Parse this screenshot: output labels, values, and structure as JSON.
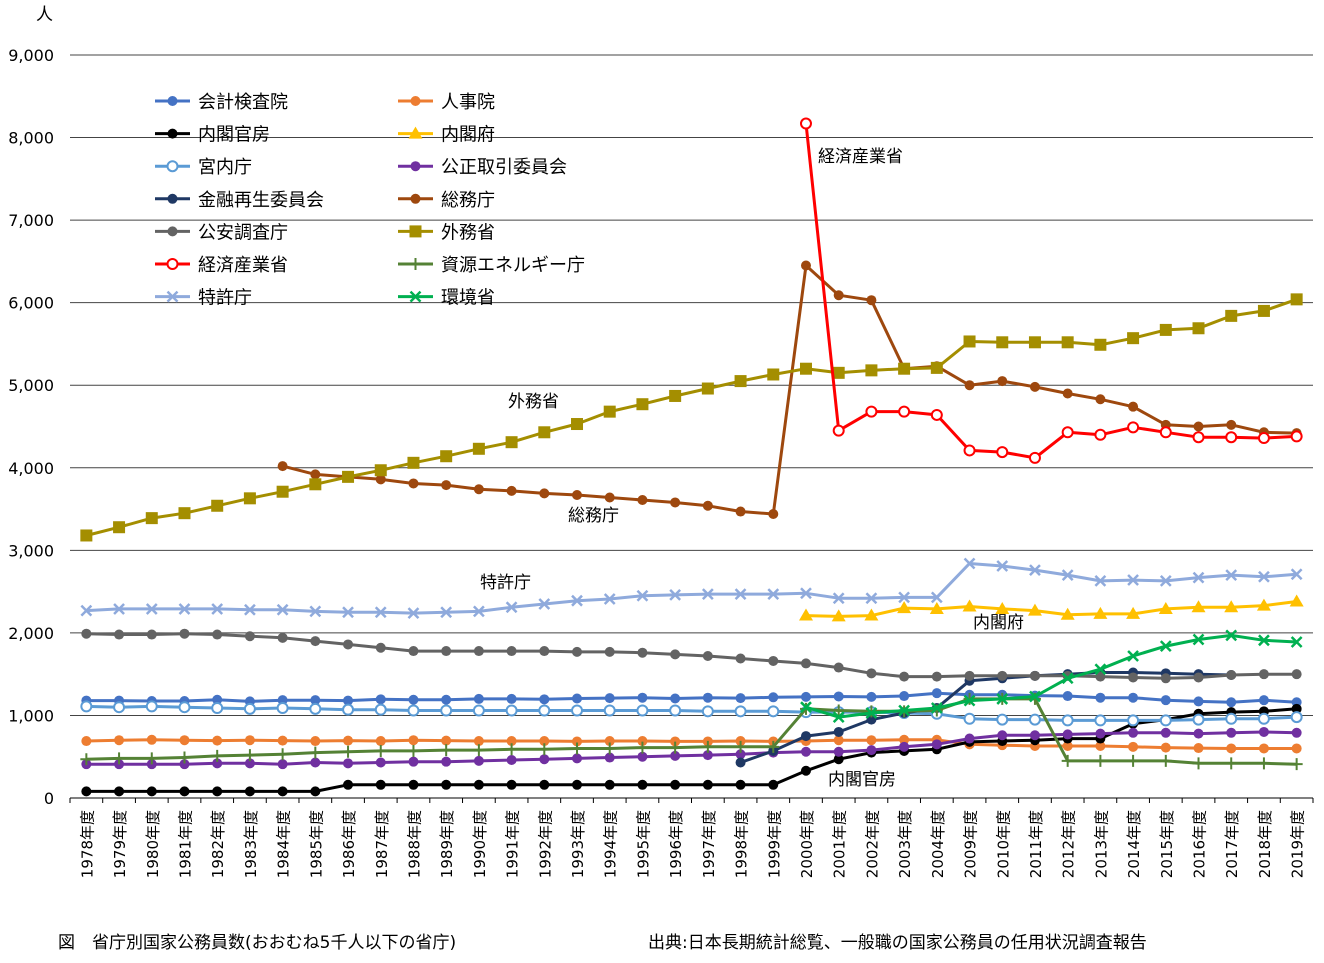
{
  "chart_data": {
    "type": "line",
    "y_unit": "人",
    "ylim": [
      0,
      9000
    ],
    "y_ticks": [
      "0",
      "1,000",
      "2,000",
      "3,000",
      "4,000",
      "5,000",
      "6,000",
      "7,000",
      "8,000",
      "9,000"
    ],
    "categories": [
      "1978年度",
      "1979年度",
      "1980年度",
      "1981年度",
      "1982年度",
      "1983年度",
      "1984年度",
      "1985年度",
      "1986年度",
      "1987年度",
      "1988年度",
      "1989年度",
      "1990年度",
      "1991年度",
      "1992年度",
      "1993年度",
      "1994年度",
      "1995年度",
      "1996年度",
      "1997年度",
      "1998年度",
      "1999年度",
      "2000年度",
      "2001年度",
      "2002年度",
      "2003年度",
      "2004年度",
      "2009年度",
      "2010年度",
      "2011年度",
      "2012年度",
      "2013年度",
      "2014年度",
      "2015年度",
      "2016年度",
      "2017年度",
      "2018年度",
      "2019年度"
    ],
    "grid": true,
    "legend_position": "top-left",
    "series": [
      {
        "name": "会計検査院",
        "color": "#4472c4",
        "marker": "circle",
        "values": [
          1180,
          1180,
          1175,
          1175,
          1190,
          1170,
          1185,
          1185,
          1180,
          1195,
          1190,
          1190,
          1200,
          1200,
          1195,
          1205,
          1210,
          1215,
          1205,
          1215,
          1210,
          1220,
          1225,
          1230,
          1225,
          1235,
          1270,
          1250,
          1250,
          1240,
          1235,
          1215,
          1215,
          1185,
          1170,
          1160,
          1185,
          1160
        ]
      },
      {
        "name": "人事院",
        "color": "#ed7d31",
        "marker": "circle",
        "values": [
          690,
          700,
          705,
          700,
          695,
          700,
          695,
          690,
          695,
          690,
          700,
          695,
          690,
          690,
          690,
          685,
          690,
          690,
          685,
          685,
          690,
          685,
          690,
          700,
          700,
          705,
          705,
          650,
          640,
          630,
          630,
          630,
          620,
          610,
          605,
          600,
          600,
          600
        ]
      },
      {
        "name": "内閣官房",
        "color": "#000000",
        "marker": "circle",
        "values": [
          80,
          80,
          80,
          80,
          80,
          80,
          80,
          80,
          160,
          160,
          160,
          160,
          160,
          160,
          160,
          160,
          160,
          160,
          160,
          160,
          160,
          160,
          330,
          470,
          550,
          570,
          590,
          680,
          690,
          700,
          720,
          720,
          900,
          950,
          1020,
          1040,
          1050,
          1080
        ]
      },
      {
        "name": "内閣府",
        "color": "#ffc000",
        "marker": "triangle",
        "values": [
          null,
          null,
          null,
          null,
          null,
          null,
          null,
          null,
          null,
          null,
          null,
          null,
          null,
          null,
          null,
          null,
          null,
          null,
          null,
          null,
          null,
          null,
          2210,
          2200,
          2210,
          2300,
          2290,
          2320,
          2290,
          2270,
          2220,
          2230,
          2230,
          2290,
          2310,
          2310,
          2330,
          2380
        ]
      },
      {
        "name": "宮内庁",
        "color": "#5b9bd5",
        "marker": "hollow-circle",
        "values": [
          1110,
          1100,
          1110,
          1100,
          1090,
          1080,
          1090,
          1080,
          1070,
          1070,
          1060,
          1060,
          1060,
          1060,
          1060,
          1060,
          1060,
          1060,
          1060,
          1050,
          1050,
          1050,
          1040,
          1040,
          1040,
          1030,
          1020,
          960,
          950,
          950,
          940,
          940,
          940,
          940,
          950,
          960,
          960,
          980
        ]
      },
      {
        "name": "公正取引委員会",
        "color": "#7030a0",
        "marker": "circle",
        "values": [
          410,
          410,
          410,
          410,
          420,
          420,
          410,
          430,
          420,
          430,
          440,
          440,
          450,
          460,
          470,
          480,
          490,
          500,
          510,
          520,
          530,
          550,
          560,
          560,
          580,
          620,
          650,
          720,
          760,
          760,
          770,
          780,
          790,
          790,
          780,
          790,
          800,
          790
        ]
      },
      {
        "name": "金融再生委員会",
        "color": "#1f3864",
        "marker": "circle",
        "values": [
          null,
          null,
          null,
          null,
          null,
          null,
          null,
          null,
          null,
          null,
          null,
          null,
          null,
          null,
          null,
          null,
          null,
          null,
          null,
          null,
          430,
          570,
          750,
          800,
          950,
          1030,
          1090,
          1420,
          1450,
          1480,
          1500,
          1520,
          1520,
          1510,
          1500,
          1490,
          null,
          null
        ]
      },
      {
        "name": "総務庁",
        "color": "#9e480e",
        "marker": "circle",
        "values": [
          null,
          null,
          null,
          null,
          null,
          null,
          4020,
          3920,
          3890,
          3860,
          3810,
          3790,
          3740,
          3720,
          3690,
          3670,
          3640,
          3610,
          3580,
          3540,
          3470,
          3440,
          6450,
          6090,
          6030,
          5200,
          5230,
          5000,
          5050,
          4980,
          4900,
          4830,
          4740,
          4520,
          4500,
          4520,
          4430,
          4420
        ]
      },
      {
        "name": "公安調査庁",
        "color": "#636363",
        "marker": "circle",
        "values": [
          1990,
          1980,
          1980,
          1990,
          1980,
          1960,
          1940,
          1900,
          1860,
          1820,
          1780,
          1780,
          1780,
          1780,
          1780,
          1770,
          1770,
          1760,
          1740,
          1720,
          1690,
          1660,
          1630,
          1580,
          1510,
          1470,
          1470,
          1480,
          1480,
          1480,
          1480,
          1470,
          1460,
          1450,
          1460,
          1490,
          1500,
          1500
        ]
      },
      {
        "name": "外務省",
        "color": "#a48e00",
        "marker": "square",
        "values": [
          3180,
          3280,
          3390,
          3450,
          3540,
          3630,
          3710,
          3800,
          3890,
          3970,
          4060,
          4140,
          4230,
          4310,
          4430,
          4530,
          4680,
          4770,
          4870,
          4960,
          5050,
          5130,
          5200,
          5150,
          5180,
          5200,
          5210,
          5530,
          5520,
          5520,
          5520,
          5490,
          5570,
          5670,
          5690,
          5840,
          5900,
          6040
        ]
      },
      {
        "name": "経済産業省",
        "color": "#ff0000",
        "marker": "hollow-circle",
        "values": [
          null,
          null,
          null,
          null,
          null,
          null,
          null,
          null,
          null,
          null,
          null,
          null,
          null,
          null,
          null,
          null,
          null,
          null,
          null,
          null,
          null,
          null,
          8170,
          4450,
          4680,
          4680,
          4640,
          4210,
          4190,
          4120,
          4430,
          4400,
          4490,
          4430,
          4370,
          4370,
          4360,
          4380
        ]
      },
      {
        "name": "資源エネルギー庁",
        "color": "#548235",
        "marker": "plus",
        "values": [
          470,
          480,
          480,
          490,
          510,
          520,
          530,
          550,
          560,
          570,
          570,
          580,
          580,
          590,
          590,
          600,
          600,
          610,
          610,
          620,
          620,
          620,
          1080,
          1060,
          1050,
          1050,
          1060,
          1200,
          1200,
          1200,
          450,
          450,
          450,
          450,
          420,
          420,
          420,
          410
        ]
      },
      {
        "name": "特許庁",
        "color": "#8faadc",
        "marker": "x",
        "values": [
          2270,
          2290,
          2290,
          2290,
          2290,
          2280,
          2280,
          2260,
          2250,
          2250,
          2240,
          2250,
          2260,
          2310,
          2350,
          2390,
          2410,
          2450,
          2460,
          2470,
          2470,
          2470,
          2480,
          2420,
          2420,
          2430,
          2430,
          2840,
          2810,
          2760,
          2700,
          2630,
          2640,
          2630,
          2670,
          2700,
          2680,
          2710
        ]
      },
      {
        "name": "環境省",
        "color": "#00b050",
        "marker": "x",
        "values": [
          null,
          null,
          null,
          null,
          null,
          null,
          null,
          null,
          null,
          null,
          null,
          null,
          null,
          null,
          null,
          null,
          null,
          null,
          null,
          null,
          null,
          null,
          1100,
          980,
          1030,
          1060,
          1090,
          1180,
          1200,
          1230,
          1450,
          1560,
          1720,
          1840,
          1920,
          1970,
          1910,
          1890
        ]
      }
    ],
    "annotations": [
      "経済産業省",
      "外務省",
      "総務庁",
      "特許庁",
      "内閣府",
      "内閣官房"
    ]
  },
  "caption": {
    "figure": "図　省庁別国家公務員数(おおむね5千人以下の省庁)",
    "source": "出典:日本長期統計総覧、一般職の国家公務員の任用状況調査報告"
  }
}
